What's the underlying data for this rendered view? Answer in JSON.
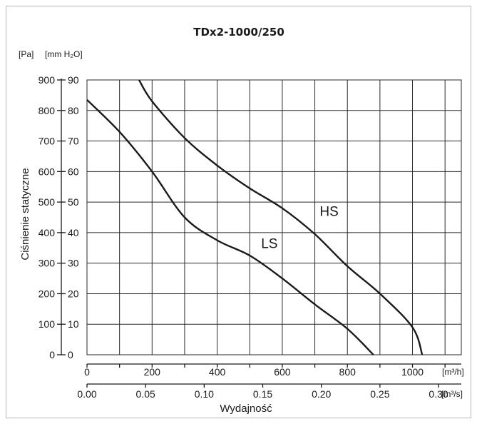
{
  "chart_data": {
    "type": "line",
    "title": "TDx2-1000/250",
    "ylabel": "Ciśnienie statyczne",
    "xlabel": "Wydajność",
    "y_units": {
      "pa": "[Pa]",
      "mm": "[mm H₂O]"
    },
    "x_units": {
      "m3h": "[m³/h]",
      "m3s": "[m³/s]"
    },
    "xlim_m3h": [
      0,
      1150
    ],
    "ylim_pa": [
      0,
      900
    ],
    "grid": true,
    "y_ticks_pa": [
      "0",
      "100",
      "200",
      "300",
      "400",
      "500",
      "600",
      "700",
      "800",
      "900"
    ],
    "y_ticks_mm": [
      "0",
      "10",
      "20",
      "30",
      "40",
      "50",
      "60",
      "70",
      "80",
      "90"
    ],
    "x_ticks_m3h": [
      "0",
      "200",
      "400",
      "600",
      "800",
      "1000"
    ],
    "x_ticks_m3s": [
      "0.00",
      "0.05",
      "0.10",
      "0.15",
      "0.20",
      "0.25",
      "0.30"
    ],
    "series": [
      {
        "name": "HS",
        "x": [
          160,
          200,
          300,
          400,
          500,
          600,
          700,
          800,
          900,
          1000,
          1030
        ],
        "y": [
          900,
          830,
          710,
          620,
          545,
          480,
          395,
          290,
          200,
          90,
          0
        ]
      },
      {
        "name": "LS",
        "x": [
          0,
          100,
          200,
          300,
          400,
          500,
          600,
          700,
          800,
          880
        ],
        "y": [
          835,
          730,
          600,
          450,
          375,
          325,
          250,
          165,
          85,
          0
        ]
      }
    ]
  }
}
